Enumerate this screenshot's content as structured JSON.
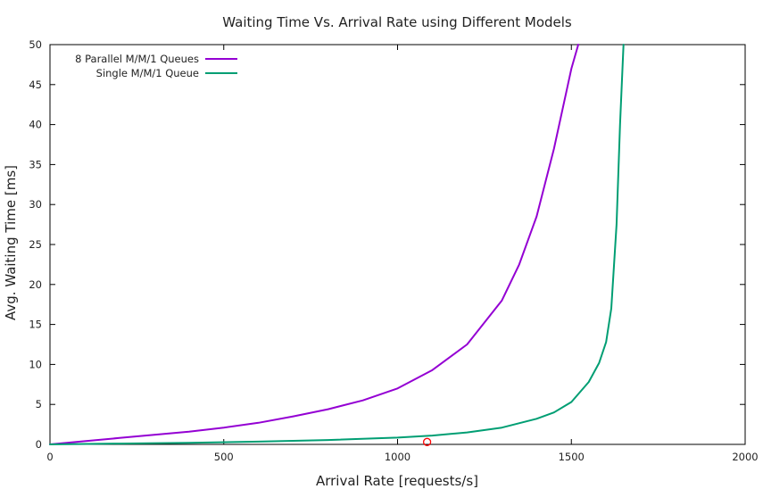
{
  "chart_data": {
    "type": "line",
    "title": "Waiting Time Vs. Arrival Rate using Different Models",
    "xlabel": "Arrival Rate [requests/s]",
    "ylabel": "Avg. Waiting Time [ms]",
    "xlim": [
      0,
      2000
    ],
    "ylim": [
      0,
      50
    ],
    "xticks": [
      "0",
      "500",
      "1000",
      "1500",
      "2000"
    ],
    "yticks": [
      "0",
      "5",
      "10",
      "15",
      "20",
      "25",
      "30",
      "35",
      "40",
      "45",
      "50"
    ],
    "grid": false,
    "legend_position": "top-left",
    "series": [
      {
        "name": "8 Parallel M/M/1 Queues",
        "color": "#9400d3",
        "x": [
          0,
          100,
          200,
          300,
          400,
          500,
          600,
          700,
          800,
          900,
          1000,
          1100,
          1200,
          1300,
          1350,
          1400,
          1450,
          1480,
          1500,
          1520
        ],
        "y": [
          0,
          0.4,
          0.8,
          1.2,
          1.6,
          2.1,
          2.7,
          3.5,
          4.4,
          5.5,
          7.0,
          9.3,
          12.5,
          18.0,
          22.5,
          28.5,
          37.0,
          43.0,
          47.0,
          50.0
        ]
      },
      {
        "name": "Single M/M/1 Queue",
        "color": "#009e73",
        "x": [
          0,
          200,
          400,
          600,
          800,
          1000,
          1100,
          1200,
          1300,
          1400,
          1450,
          1500,
          1550,
          1580,
          1600,
          1615,
          1630,
          1640,
          1650
        ],
        "y": [
          0,
          0.1,
          0.2,
          0.35,
          0.55,
          0.85,
          1.1,
          1.5,
          2.1,
          3.2,
          4.0,
          5.3,
          7.8,
          10.2,
          12.8,
          17.0,
          27.5,
          40.0,
          50.0
        ]
      }
    ],
    "marker": {
      "x": 1085,
      "y": 0.3,
      "color": "#ff0000",
      "shape": "circle"
    }
  }
}
